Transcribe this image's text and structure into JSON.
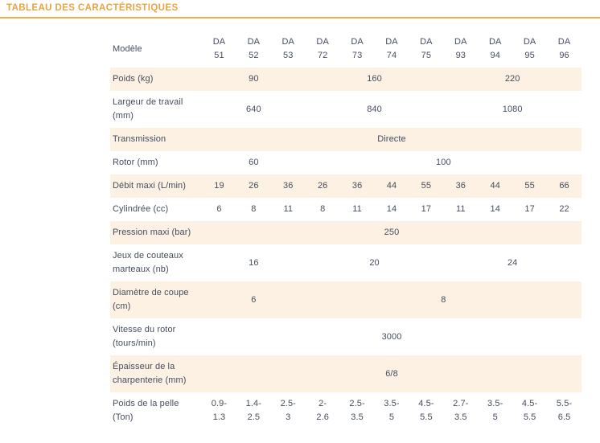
{
  "page": {
    "title": "TABLEAU DES CARACTÉRISTIQUES"
  },
  "colors": {
    "accent": "#E8A43F",
    "rule": "#EFAC52",
    "stripe": "#FCF1E2",
    "text": "#454D5E"
  },
  "table": {
    "corner_label": "Modèle",
    "models": [
      "DA\n51",
      "DA\n52",
      "DA\n53",
      "DA\n72",
      "DA\n73",
      "DA\n74",
      "DA\n75",
      "DA\n93",
      "DA\n94",
      "DA\n95",
      "DA\n96"
    ],
    "rows": [
      {
        "label": "Poids (kg)",
        "cells": [
          {
            "text": "90",
            "span": 3
          },
          {
            "text": "160",
            "span": 4
          },
          {
            "text": "220",
            "span": 4
          }
        ]
      },
      {
        "label": "Largeur de travail (mm)",
        "cells": [
          {
            "text": "640",
            "span": 3
          },
          {
            "text": "840",
            "span": 4
          },
          {
            "text": "1080",
            "span": 4
          }
        ]
      },
      {
        "label": "Transmission",
        "cells": [
          {
            "text": "Directe",
            "span": 11
          }
        ]
      },
      {
        "label": "Rotor (mm)",
        "cells": [
          {
            "text": "60",
            "span": 3
          },
          {
            "text": "100",
            "span": 8
          }
        ]
      },
      {
        "label": "Débit maxi (L/min)",
        "cells": [
          {
            "text": "19",
            "span": 1
          },
          {
            "text": "26",
            "span": 1
          },
          {
            "text": "36",
            "span": 1
          },
          {
            "text": "26",
            "span": 1
          },
          {
            "text": "36",
            "span": 1
          },
          {
            "text": "44",
            "span": 1
          },
          {
            "text": "55",
            "span": 1
          },
          {
            "text": "36",
            "span": 1
          },
          {
            "text": "44",
            "span": 1
          },
          {
            "text": "55",
            "span": 1
          },
          {
            "text": "66",
            "span": 1
          }
        ]
      },
      {
        "label": "Cylindrée (cc)",
        "cells": [
          {
            "text": "6",
            "span": 1
          },
          {
            "text": "8",
            "span": 1
          },
          {
            "text": "11",
            "span": 1
          },
          {
            "text": "8",
            "span": 1
          },
          {
            "text": "11",
            "span": 1
          },
          {
            "text": "14",
            "span": 1
          },
          {
            "text": "17",
            "span": 1
          },
          {
            "text": "11",
            "span": 1
          },
          {
            "text": "14",
            "span": 1
          },
          {
            "text": "17",
            "span": 1
          },
          {
            "text": "22",
            "span": 1
          }
        ]
      },
      {
        "label": "Pression maxi (bar)",
        "cells": [
          {
            "text": "250",
            "span": 11
          }
        ]
      },
      {
        "label": "Jeux de couteaux marteaux (nb)",
        "cells": [
          {
            "text": "16",
            "span": 3
          },
          {
            "text": "20",
            "span": 4
          },
          {
            "text": "24",
            "span": 4
          }
        ]
      },
      {
        "label": "Diamètre de coupe (cm)",
        "cells": [
          {
            "text": "6",
            "span": 3
          },
          {
            "text": "8",
            "span": 8
          }
        ]
      },
      {
        "label": "Vitesse du rotor (tours/min)",
        "cells": [
          {
            "text": "3000",
            "span": 11
          }
        ]
      },
      {
        "label": "Épaisseur de la charpenterie (mm)",
        "cells": [
          {
            "text": "6/8",
            "span": 11
          }
        ]
      },
      {
        "label": "Poids de la pelle (Ton)",
        "cells": [
          {
            "text": "0.9-\n1.3",
            "span": 1
          },
          {
            "text": "1.4-\n2.5",
            "span": 1
          },
          {
            "text": "2.5-\n3",
            "span": 1
          },
          {
            "text": "2-\n2.6",
            "span": 1
          },
          {
            "text": "2.5-\n3.5",
            "span": 1
          },
          {
            "text": "3.5-\n5",
            "span": 1
          },
          {
            "text": "4.5-\n5.5",
            "span": 1
          },
          {
            "text": "2.7-\n3.5",
            "span": 1
          },
          {
            "text": "3.5-\n5",
            "span": 1
          },
          {
            "text": "4.5-\n5.5",
            "span": 1
          },
          {
            "text": "5.5-\n6.5",
            "span": 1
          }
        ]
      }
    ]
  }
}
